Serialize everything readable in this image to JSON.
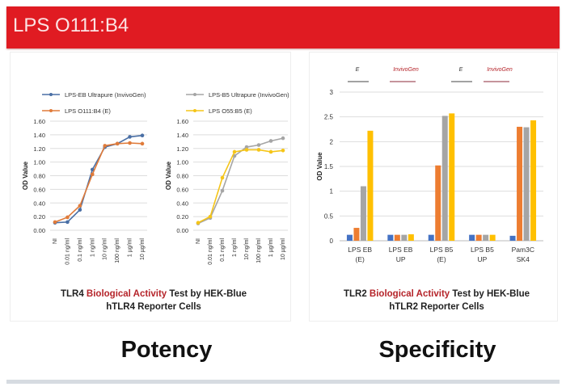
{
  "header": {
    "title": "LPS O111:B4"
  },
  "colors": {
    "header": "#e01b22",
    "blue": "#4a6fa5",
    "orange": "#e07b3a",
    "gray": "#a5a5a5",
    "yellow": "#f5c518",
    "bar_blue": "#4472c4",
    "bar_orange": "#ed7d31",
    "bar_gray": "#a5a5a5",
    "bar_yellow": "#ffc000"
  },
  "captions": {
    "left": {
      "pre": "TLR4 ",
      "red": "Biological Activity",
      "post": " Test by HEK-Blue hTLR4 Reporter Cells"
    },
    "right": {
      "pre": "TLR2 ",
      "red": "Biological Activity",
      "post": " Test by HEK-Blue hTLR2 Reporter Cells"
    }
  },
  "labels": {
    "left": "Potency",
    "right": "Specificity"
  },
  "chart_data": [
    {
      "type": "line",
      "ylabel": "OD Value",
      "ylim": [
        0,
        1.6
      ],
      "yticks": [
        "0.00",
        "0.20",
        "0.40",
        "0.60",
        "0.80",
        "1.00",
        "1.20",
        "1.40",
        "1.60"
      ],
      "grid": true,
      "legend": "top",
      "categories": [
        "NI",
        "0.01 ng/ml",
        "0.1 ng/ml",
        "1 ng/ml",
        "10 ng/ml",
        "100 ng/ml",
        "1 µg/ml",
        "10 µg/ml"
      ],
      "series": [
        {
          "name": "LPS-EB Ultrapure (InvivoGen)",
          "color": "#4a6fa5",
          "values": [
            0.11,
            0.12,
            0.3,
            0.89,
            1.22,
            1.27,
            1.37,
            1.39
          ]
        },
        {
          "name": "LPS O111:B4 (E)",
          "color": "#e07b3a",
          "values": [
            0.12,
            0.19,
            0.36,
            0.82,
            1.24,
            1.27,
            1.28,
            1.27
          ]
        }
      ]
    },
    {
      "type": "line",
      "ylabel": "OD Value",
      "ylim": [
        0,
        1.6
      ],
      "yticks": [
        "0.00",
        "0.20",
        "0.40",
        "0.60",
        "0.80",
        "1.00",
        "1.20",
        "1.40",
        "1.60"
      ],
      "grid": true,
      "legend": "top",
      "categories": [
        "NI",
        "0.01 ng/ml",
        "0.1 ng/ml",
        "1 ng/ml",
        "10 ng/ml",
        "100 ng/ml",
        "1 µg/ml",
        "10 µg/ml"
      ],
      "series": [
        {
          "name": "LPS-B5 Ultrapure (InvivoGen)",
          "color": "#a5a5a5",
          "values": [
            0.1,
            0.18,
            0.58,
            1.09,
            1.22,
            1.25,
            1.31,
            1.35
          ]
        },
        {
          "name": "LPS O55:B5 (E)",
          "color": "#f5c518",
          "values": [
            0.11,
            0.2,
            0.77,
            1.15,
            1.18,
            1.18,
            1.15,
            1.17
          ]
        }
      ]
    },
    {
      "type": "bar",
      "ylabel": "OD Value",
      "ylim": [
        0,
        3
      ],
      "yticks": [
        "0",
        "0.5",
        "1",
        "1.5",
        "2",
        "2.5",
        "3"
      ],
      "grid": true,
      "legend": "top",
      "legend_entries": [
        "E",
        "InvivoGen",
        "E",
        "InvivoGen"
      ],
      "categories": [
        [
          "LPS EB",
          "(E)"
        ],
        [
          "LPS EB",
          "UP"
        ],
        [
          "LPS B5",
          "(E)"
        ],
        [
          "LPS B5",
          "UP"
        ],
        [
          "Pam3C",
          "SK4"
        ]
      ],
      "series": [
        {
          "color": "#4472c4",
          "values": [
            0.12,
            0.12,
            0.12,
            0.12,
            0.1
          ]
        },
        {
          "color": "#ed7d31",
          "values": [
            0.26,
            0.12,
            1.52,
            0.12,
            2.3
          ]
        },
        {
          "color": "#a5a5a5",
          "values": [
            1.1,
            0.12,
            2.52,
            0.12,
            2.29
          ]
        },
        {
          "color": "#ffc000",
          "values": [
            2.22,
            0.13,
            2.57,
            0.12,
            2.43
          ]
        }
      ]
    }
  ]
}
